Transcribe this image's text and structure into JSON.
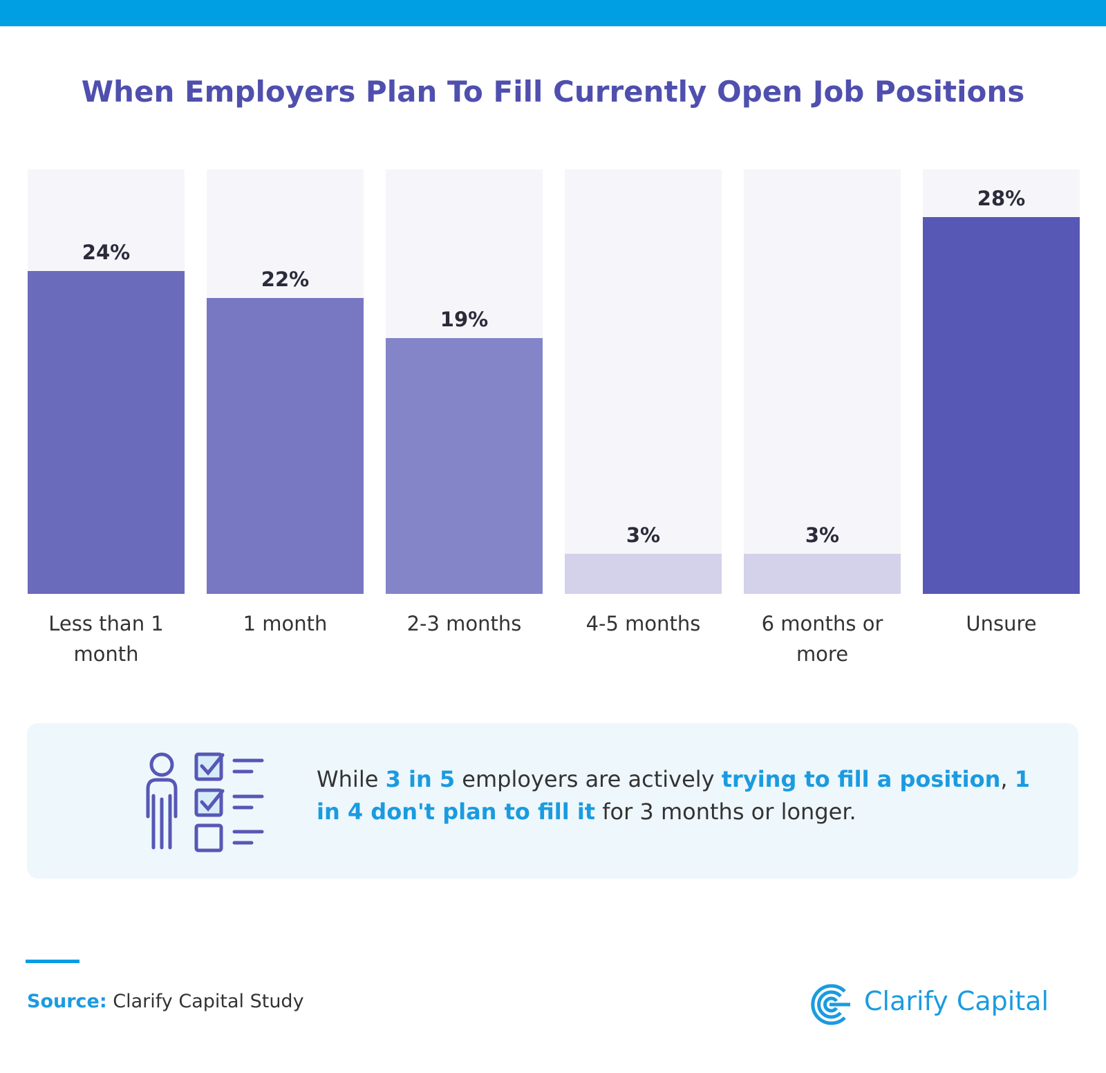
{
  "chart_data": {
    "type": "bar",
    "title": "When Employers Plan To Fill Currently Open Job Positions",
    "categories": [
      "Less than 1 month",
      "1 month",
      "2-3 months",
      "4-5 months",
      "6 months or more",
      "Unsure"
    ],
    "values": [
      24,
      22,
      19,
      3,
      3,
      28
    ],
    "value_labels": [
      "24%",
      "22%",
      "19%",
      "3%",
      "3%",
      "28%"
    ],
    "colors": [
      "#6b6bbb",
      "#7777c2",
      "#8484c9",
      "#d3d2ea",
      "#d3d2ea",
      "#5757b5"
    ]
  },
  "callout": {
    "segments": [
      {
        "text": "While ",
        "highlight": false
      },
      {
        "text": "3 in 5",
        "highlight": true
      },
      {
        "text": " employers are actively ",
        "highlight": false
      },
      {
        "text": "trying to fill a position",
        "highlight": true
      },
      {
        "text": ", ",
        "highlight": false
      },
      {
        "text": "1 in 4 don't plan to fill it",
        "highlight": true
      },
      {
        "text": " for 3 months or longer.",
        "highlight": false
      }
    ]
  },
  "footer": {
    "source_label": "Source:",
    "source": "Clarify Capital Study",
    "brand": "Clarify Capital"
  }
}
